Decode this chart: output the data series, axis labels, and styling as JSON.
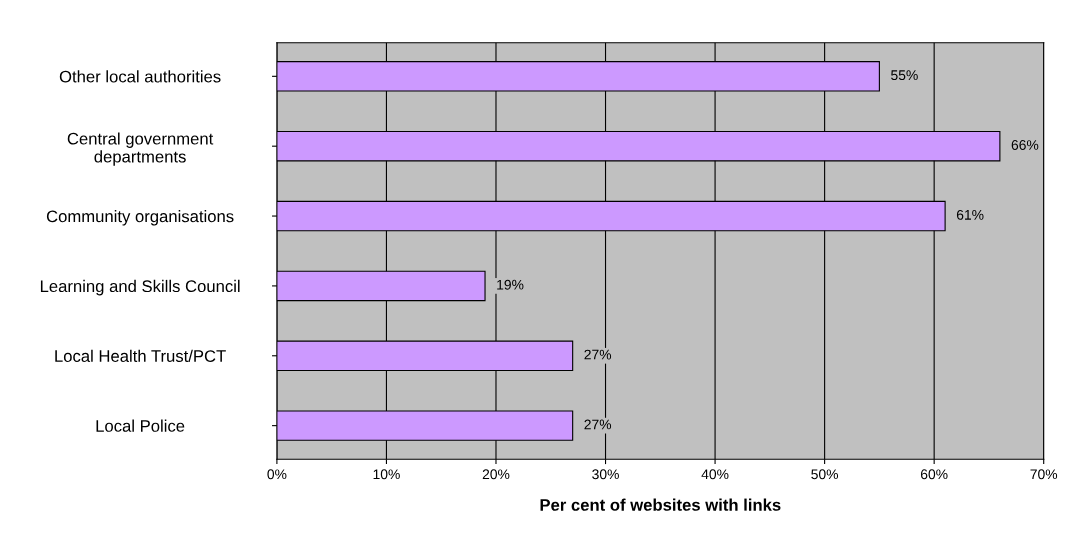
{
  "chart_data": {
    "type": "bar",
    "orientation": "horizontal",
    "xlabel": "Per cent of websites with links",
    "categories": [
      "Other local authorities",
      "Central government\ndepartments",
      "Community organisations",
      "Learning and Skills Council",
      "Local Health Trust/PCT",
      "Local Police"
    ],
    "values": [
      55,
      66,
      61,
      19,
      27,
      27
    ],
    "value_labels": [
      "55%",
      "66%",
      "61%",
      "19%",
      "27%",
      "27%"
    ],
    "color": "#cc99ff",
    "xlim": [
      0,
      70
    ],
    "xticks": [
      {
        "value": 0,
        "label": "0%"
      },
      {
        "value": 10,
        "label": "10%"
      },
      {
        "value": 20,
        "label": "20%"
      },
      {
        "value": 30,
        "label": "30%"
      },
      {
        "value": 40,
        "label": "40%"
      },
      {
        "value": 50,
        "label": "50%"
      },
      {
        "value": 60,
        "label": "60%"
      },
      {
        "value": 70,
        "label": "70%"
      }
    ],
    "grid": "x"
  }
}
